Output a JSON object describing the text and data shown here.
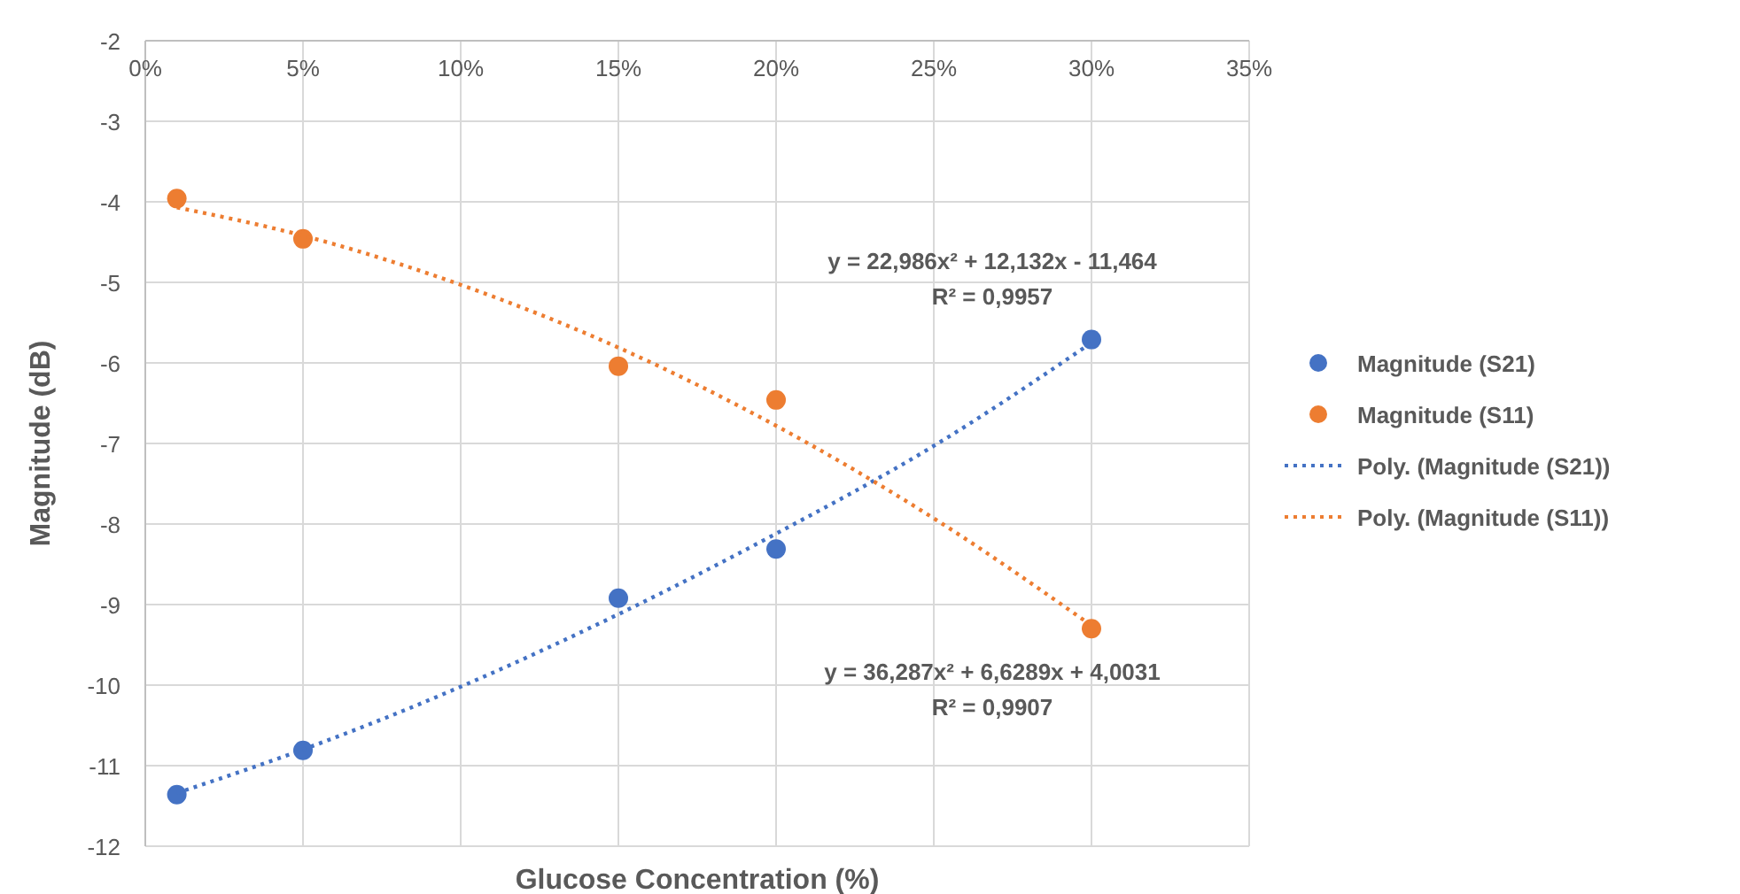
{
  "chart_data": {
    "type": "scatter",
    "xlabel": "Glucose Concentration (%)",
    "ylabel": "Magnitude (dB)",
    "xlim": [
      0,
      0.35
    ],
    "xticks": [
      {
        "value": 0,
        "label": "0%"
      },
      {
        "value": 0.05,
        "label": "5%"
      },
      {
        "value": 0.1,
        "label": "10%"
      },
      {
        "value": 0.15,
        "label": "15%"
      },
      {
        "value": 0.2,
        "label": "20%"
      },
      {
        "value": 0.25,
        "label": "25%"
      },
      {
        "value": 0.3,
        "label": "30%"
      },
      {
        "value": 0.35,
        "label": "35%"
      }
    ],
    "ylim": [
      -12,
      -2
    ],
    "yticks": [
      -12,
      -11,
      -10,
      -9,
      -8,
      -7,
      -6,
      -5,
      -4,
      -3,
      -2
    ],
    "grid": true,
    "legend": "right",
    "series": [
      {
        "name": "Magnitude (S21)",
        "marker": "circle",
        "color": "#4472c4",
        "x": [
          0.01,
          0.05,
          0.15,
          0.2,
          0.3
        ],
        "values": [
          -11.36,
          -10.81,
          -8.92,
          -8.31,
          -5.71
        ]
      },
      {
        "name": "Magnitude (S11)",
        "marker": "circle",
        "color": "#ed7d31",
        "x": [
          0.01,
          0.05,
          0.15,
          0.2,
          0.3
        ],
        "values": [
          -3.96,
          -4.46,
          -6.04,
          -6.46,
          -9.3
        ]
      },
      {
        "name": "Poly. (Magnitude (S21))",
        "type": "line",
        "marker": "none",
        "line_style": "dotted",
        "color": "#4472c4",
        "x": [
          0.01,
          0.05,
          0.1,
          0.15,
          0.2,
          0.25,
          0.3
        ],
        "values": [
          -11.34,
          -10.8,
          -10.02,
          -9.12,
          -8.12,
          -7.03,
          -5.75
        ]
      },
      {
        "name": "Poly. (Magnitude (S11))",
        "type": "line",
        "marker": "none",
        "line_style": "dotted",
        "color": "#ed7d31",
        "x": [
          0.01,
          0.05,
          0.1,
          0.15,
          0.2,
          0.25,
          0.3
        ],
        "values": [
          -4.07,
          -4.42,
          -5.03,
          -5.81,
          -6.78,
          -7.93,
          -9.26
        ]
      }
    ],
    "annotations": [
      "y = 22,986x² + 12,132x - 11,464",
      "R² = 0,9957",
      "y = 36,287x² + 6,6289x + 4,0031",
      "R² = 0,9907"
    ]
  }
}
